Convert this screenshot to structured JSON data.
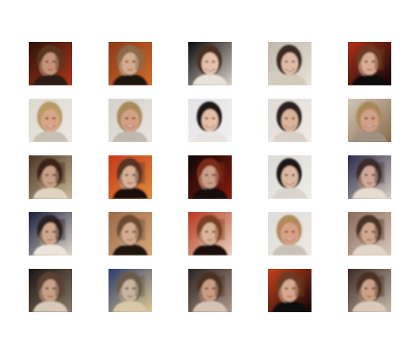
{
  "grid": {
    "rows": 5,
    "cols": 5,
    "tiles": [
      {
        "subject": "blended-portrait",
        "palette": {
          "bg": "#2a1208",
          "bg2": "#b0361a",
          "skin": "#c7937a",
          "hair": "#5a3520",
          "shirt": "#2b1a14"
        }
      },
      {
        "subject": "blended-portrait",
        "palette": {
          "bg": "#8a3a1a",
          "bg2": "#d26a2a",
          "skin": "#d7ab8f",
          "hair": "#8a6a4a",
          "shirt": "#1e1410"
        }
      },
      {
        "subject": "smiling-woman",
        "palette": {
          "bg": "#0c0a0a",
          "bg2": "#d8d0c8",
          "skin": "#e6c1ac",
          "hair": "#4a2e22",
          "shirt": "#e8e2da"
        }
      },
      {
        "subject": "smiling-woman-blend",
        "palette": {
          "bg": "#bfb7aa",
          "bg2": "#e8e2d8",
          "skin": "#e0bca6",
          "hair": "#3a2a22",
          "shirt": "#d4cab8"
        }
      },
      {
        "subject": "blended-portrait",
        "palette": {
          "bg": "#b0301a",
          "bg2": "#0a0606",
          "skin": "#d8ad94",
          "hair": "#6a3a24",
          "shirt": "#0e0a08"
        }
      },
      {
        "subject": "smiling-man",
        "palette": {
          "bg": "#dcd8d2",
          "bg2": "#ece8e2",
          "skin": "#d8a588",
          "hair": "#b89a62",
          "shirt": "#c8c0b4"
        }
      },
      {
        "subject": "smiling-man",
        "palette": {
          "bg": "#d4d0ca",
          "bg2": "#e8e4de",
          "skin": "#d3a086",
          "hair": "#a88a58",
          "shirt": "#c0b8ac"
        }
      },
      {
        "subject": "smiling-woman",
        "palette": {
          "bg": "#e4e2e6",
          "bg2": "#f2f0f2",
          "skin": "#e4bea8",
          "hair": "#1e1616",
          "shirt": "#e8e4e2"
        }
      },
      {
        "subject": "smiling-woman-blend",
        "palette": {
          "bg": "#dedad6",
          "bg2": "#f0ece8",
          "skin": "#dcb49c",
          "hair": "#2a2020",
          "shirt": "#d8d2ca"
        }
      },
      {
        "subject": "smiling-man",
        "palette": {
          "bg": "#d2c6b8",
          "bg2": "#8a6a4a",
          "skin": "#d2a088",
          "hair": "#a8885a",
          "shirt": "#a09080"
        }
      },
      {
        "subject": "distorted-blend",
        "palette": {
          "bg": "#4a3424",
          "bg2": "#c8b898",
          "skin": "#c8a088",
          "hair": "#3a2418",
          "shirt": "#e0d4c0"
        }
      },
      {
        "subject": "blended-portrait",
        "palette": {
          "bg": "#c43a1a",
          "bg2": "#e08a3a",
          "skin": "#d8b098",
          "hair": "#5a3020",
          "shirt": "#1a100c"
        }
      },
      {
        "subject": "blended-portrait",
        "palette": {
          "bg": "#0c0606",
          "bg2": "#8a1a10",
          "skin": "#caa088",
          "hair": "#7a2a18",
          "shirt": "#140a08"
        }
      },
      {
        "subject": "smiling-woman-blend",
        "palette": {
          "bg": "#dcdad6",
          "bg2": "#f0eeea",
          "skin": "#dcb8a2",
          "hair": "#1e1616",
          "shirt": "#dad4cc"
        }
      },
      {
        "subject": "distorted-blend",
        "palette": {
          "bg": "#2a2a4a",
          "bg2": "#d8ccc0",
          "skin": "#d0a898",
          "hair": "#3a2a2a",
          "shirt": "#e6dcd0"
        }
      },
      {
        "subject": "distorted-blend",
        "palette": {
          "bg": "#1a1e3a",
          "bg2": "#e0d8cc",
          "skin": "#d0a890",
          "hair": "#2a2020",
          "shirt": "#ece4d8"
        }
      },
      {
        "subject": "blended-portrait",
        "palette": {
          "bg": "#9a6a4a",
          "bg2": "#d8a878",
          "skin": "#d4ac90",
          "hair": "#6a4a30",
          "shirt": "#1c1410"
        }
      },
      {
        "subject": "blended-portrait",
        "palette": {
          "bg": "#b8361a",
          "bg2": "#e6d2c0",
          "skin": "#dcb49a",
          "hair": "#7a4020",
          "shirt": "#1a100c"
        }
      },
      {
        "subject": "smiling-man",
        "palette": {
          "bg": "#dedcd8",
          "bg2": "#eeeae6",
          "skin": "#d8a088",
          "hair": "#b08a58",
          "shirt": "#cac2b8"
        }
      },
      {
        "subject": "distorted-blend",
        "palette": {
          "bg": "#8a6a5a",
          "bg2": "#d8c8b8",
          "skin": "#d0a890",
          "hair": "#4a3428",
          "shirt": "#e2d6c8"
        }
      },
      {
        "subject": "distorted-blend",
        "palette": {
          "bg": "#1a1410",
          "bg2": "#8a7a66",
          "skin": "#c8a088",
          "hair": "#5a4030",
          "shirt": "#d8cab8"
        }
      },
      {
        "subject": "distorted-blend",
        "palette": {
          "bg": "#2a3a6a",
          "bg2": "#e0c890",
          "skin": "#c8b4a0",
          "hair": "#6a5a4a",
          "shirt": "#d8c8a8"
        }
      },
      {
        "subject": "distorted-blend",
        "palette": {
          "bg": "#2a2220",
          "bg2": "#b09888",
          "skin": "#c89c84",
          "hair": "#4a3024",
          "shirt": "#d4c4b4"
        }
      },
      {
        "subject": "blended-portrait",
        "palette": {
          "bg": "#c6401c",
          "bg2": "#0c0806",
          "skin": "#d8a890",
          "hair": "#6a3a20",
          "shirt": "#100a08"
        }
      },
      {
        "subject": "distorted-blend",
        "palette": {
          "bg": "#3a2a24",
          "bg2": "#c8b8a8",
          "skin": "#caa088",
          "hair": "#4a3024",
          "shirt": "#d8cab8"
        }
      }
    ]
  }
}
